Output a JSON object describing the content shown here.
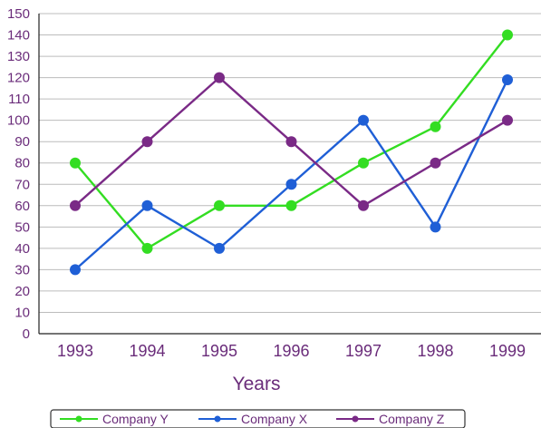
{
  "chart_data": {
    "type": "line",
    "categories": [
      "1993",
      "1994",
      "1995",
      "1996",
      "1997",
      "1998",
      "1999"
    ],
    "xlabel": "Years",
    "ylabel": "",
    "ylim": [
      0,
      150
    ],
    "yticks": [
      "0",
      "10",
      "20",
      "30",
      "40",
      "50",
      "60",
      "70",
      "80",
      "90",
      "100",
      "110",
      "120",
      "130",
      "140",
      "150"
    ],
    "grid": "horizontal",
    "legend_position": "bottom",
    "series": [
      {
        "name": "Company Y",
        "color": "#33dd22",
        "values": [
          80,
          40,
          60,
          60,
          80,
          97,
          140
        ]
      },
      {
        "name": "Company X",
        "color": "#1f5fd6",
        "values": [
          30,
          60,
          40,
          70,
          100,
          50,
          119
        ]
      },
      {
        "name": "Company Z",
        "color": "#7a2a86",
        "values": [
          60,
          90,
          120,
          90,
          60,
          80,
          100
        ]
      }
    ]
  }
}
